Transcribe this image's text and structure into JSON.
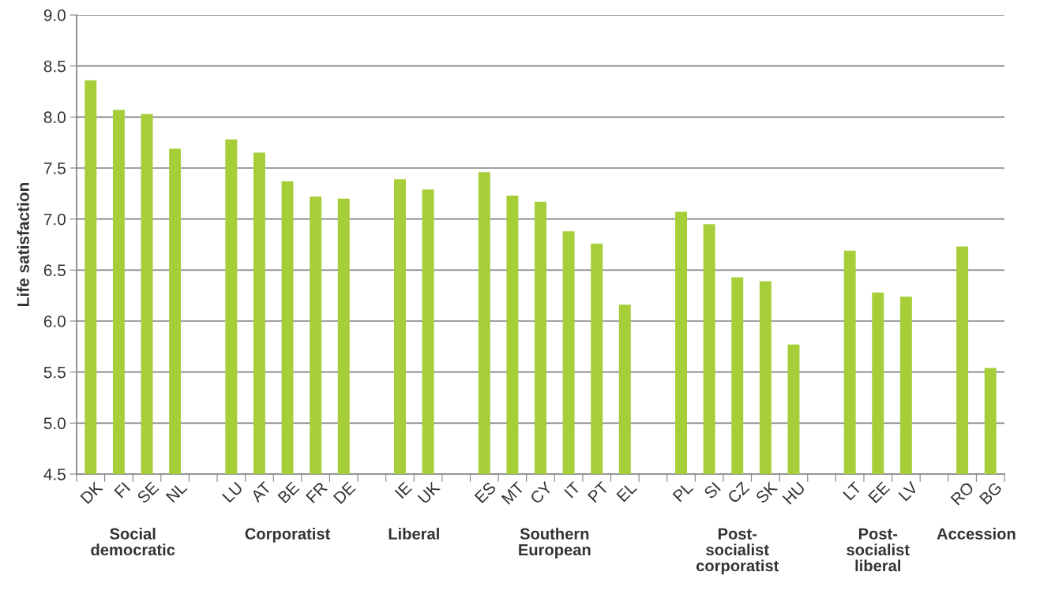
{
  "chart_data": {
    "type": "bar",
    "ylabel": "Life satisfaction",
    "categories": [
      "DK",
      "FI",
      "SE",
      "NL",
      null,
      "LU",
      "AT",
      "BE",
      "FR",
      "DE",
      null,
      "IE",
      "UK",
      null,
      "ES",
      "MT",
      "CY",
      "IT",
      "PT",
      "EL",
      null,
      "PL",
      "SI",
      "CZ",
      "SK",
      "HU",
      null,
      "LT",
      "EE",
      "LV",
      null,
      "RO",
      "BG"
    ],
    "values": [
      8.36,
      8.07,
      8.03,
      7.69,
      null,
      7.78,
      7.65,
      7.37,
      7.22,
      7.2,
      null,
      7.39,
      7.29,
      null,
      7.46,
      7.23,
      7.17,
      6.88,
      6.76,
      6.16,
      null,
      7.07,
      6.95,
      6.43,
      6.39,
      5.77,
      null,
      6.69,
      6.28,
      6.24,
      null,
      6.73,
      5.54
    ],
    "color": "#a6ce39",
    "ylim": [
      4.5,
      9.0
    ],
    "yticks": [
      {
        "value": 4.5,
        "label": "4.5"
      },
      {
        "value": 5.0,
        "label": "5.0"
      },
      {
        "value": 5.5,
        "label": "5.5"
      },
      {
        "value": 6.0,
        "label": "6.0"
      },
      {
        "value": 6.5,
        "label": "6.5"
      },
      {
        "value": 7.0,
        "label": "7.0"
      },
      {
        "value": 7.5,
        "label": "7.5"
      },
      {
        "value": 8.0,
        "label": "8.0"
      },
      {
        "value": 8.5,
        "label": "8.5"
      },
      {
        "value": 9.0,
        "label": "9.0"
      }
    ],
    "grid": "y",
    "annotations": [
      "Social\ndemocratic",
      "Corporatist",
      "Liberal",
      "Southern\nEuropean",
      "Post-\nsocialist\ncorporatist",
      "Post-\nsocialist\nliberal",
      "Accession"
    ]
  }
}
